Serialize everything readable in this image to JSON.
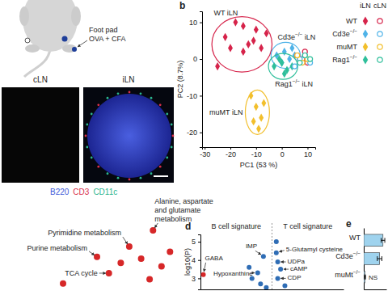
{
  "diagram": {
    "injection": [
      "Foot pad",
      "OVA + CFA"
    ],
    "image_labels": [
      "cLN",
      "iLN"
    ],
    "stains": [
      {
        "label": "B220",
        "color": "#3d5bd9"
      },
      {
        "label": "CD3",
        "color": "#d9304a"
      },
      {
        "label": "CD11c",
        "color": "#2bb58f"
      }
    ]
  },
  "chart_data": [
    {
      "type": "scatter",
      "title": "b",
      "xlabel": "PC1 (53 %)",
      "ylabel": "PC2 (8.7%)",
      "xlim": [
        -31,
        13
      ],
      "ylim": [
        -24,
        13
      ],
      "xticks": [
        -30,
        -20,
        -10,
        0,
        10
      ],
      "yticks": [
        -20,
        -10,
        0,
        10
      ],
      "legend": "right",
      "legend_columns": [
        "iLN",
        "cLN"
      ],
      "annotations": [
        "WT iLN",
        "Cd3e−/− iLN",
        "muMT iLN",
        "Rag1−/− iLN"
      ],
      "series": [
        {
          "name": "WT",
          "color": "#d6234a",
          "marker": "diamond",
          "x": [
            -25,
            -22,
            -20,
            -18,
            -15,
            -15,
            -13,
            -11,
            -10,
            -8,
            -6
          ],
          "values": [
            -2,
            6,
            3,
            10,
            9,
            2,
            4,
            5,
            8,
            3,
            7
          ]
        },
        {
          "name": "Cd3e−/−",
          "color": "#4fb3e8",
          "marker": "diamond",
          "x": [
            -2,
            0,
            1,
            3,
            4,
            5
          ],
          "values": [
            1,
            -1,
            2,
            0,
            3,
            1
          ]
        },
        {
          "name": "muMT",
          "color": "#f2bf2c",
          "marker": "diamond",
          "x": [
            -12,
            -11,
            -10,
            -9,
            -8,
            -7
          ],
          "values": [
            -10,
            -17,
            -13,
            -19,
            -16,
            -12
          ]
        },
        {
          "name": "Rag1−/−",
          "color": "#2fbf9b",
          "marker": "diamond",
          "x": [
            -3,
            -1,
            0,
            1,
            2,
            4
          ],
          "values": [
            -2,
            0,
            -1,
            -4,
            -3,
            -2
          ]
        },
        {
          "name": "WT",
          "color": "#d6234a",
          "marker": "open-circle",
          "x": [
            6,
            7,
            8,
            9,
            10
          ],
          "values": [
            1,
            0,
            0,
            2,
            -1
          ]
        },
        {
          "name": "Cd3e−/−",
          "color": "#4fb3e8",
          "marker": "open-circle",
          "x": [
            5,
            7,
            9,
            11
          ],
          "values": [
            -2,
            0,
            1,
            -1
          ]
        },
        {
          "name": "muMT",
          "color": "#f2bf2c",
          "marker": "open-circle",
          "x": [
            6,
            8,
            10
          ],
          "values": [
            1,
            -1,
            0
          ]
        },
        {
          "name": "Rag1−/−",
          "color": "#2fbf9b",
          "marker": "open-circle",
          "x": [
            7,
            9,
            11
          ],
          "values": [
            -1,
            1,
            0
          ]
        }
      ]
    },
    {
      "type": "scatter",
      "tick_labels": false,
      "xlim": [
        0,
        10
      ],
      "ylim": [
        0,
        10
      ],
      "color": "#d62728",
      "x": [
        8.3,
        6.9,
        5.0,
        5.7,
        7.6,
        8.8,
        6.4,
        9.3,
        8.1,
        3.0
      ],
      "values": [
        6.7,
        4.8,
        3.6,
        1.7,
        3.4,
        2.5,
        2.9,
        4.2,
        1.0,
        0.5
      ],
      "point_labels": [
        "Alanine, aspartate and glutamate metabolism",
        "Pyrimidine metabolism",
        "Purine metabolism",
        "TCA cycle",
        null,
        null,
        null,
        null,
        null,
        null
      ]
    },
    {
      "type": "scatter",
      "title": "d",
      "ylabel": "log10(P)",
      "subtitles": [
        "B cell signature",
        "T cell signature"
      ],
      "xlim": [
        -5,
        5
      ],
      "ylim": [
        2.4,
        5.4
      ],
      "yticks": [
        3,
        4,
        5
      ],
      "tick_labels": "y",
      "x": [
        -4.8,
        -0.6,
        -1.0,
        -1.6,
        -0.8,
        -1.4,
        -0.4,
        0.3,
        0.4,
        0.6,
        0.4,
        0.3,
        0.9
      ],
      "values": [
        3.2,
        4.2,
        3.3,
        3.6,
        2.7,
        3.0,
        2.5,
        4.4,
        3.9,
        3.5,
        3.0,
        5.0,
        2.6
      ],
      "colors": [
        "#d62728",
        "#2f6db5",
        "#2f6db5",
        "#2f6db5",
        "#2f6db5",
        "#2f6db5",
        "#2f6db5",
        "#2f6db5",
        "#2f6db5",
        "#2f6db5",
        "#2f6db5",
        "#2f6db5",
        "#2f6db5"
      ],
      "point_labels": [
        "GABA",
        "IMP",
        "Hypoxanthine",
        null,
        null,
        null,
        null,
        "5-Glutamyl cysteine",
        "UDPa",
        "cAMP",
        "CDP",
        null,
        null
      ]
    },
    {
      "type": "bar",
      "title": "e",
      "orientation": "horizontal",
      "categories": [
        "WT",
        "Cd3e−/−",
        "muMt−/−"
      ],
      "values": [
        0.85,
        0.7,
        0.05
      ],
      "errors": [
        0.08,
        0.1,
        0.03
      ],
      "color": "#9fd3ee",
      "xlim": [
        0,
        1
      ],
      "tick_labels": "y",
      "annotations": [
        "NS"
      ]
    }
  ]
}
